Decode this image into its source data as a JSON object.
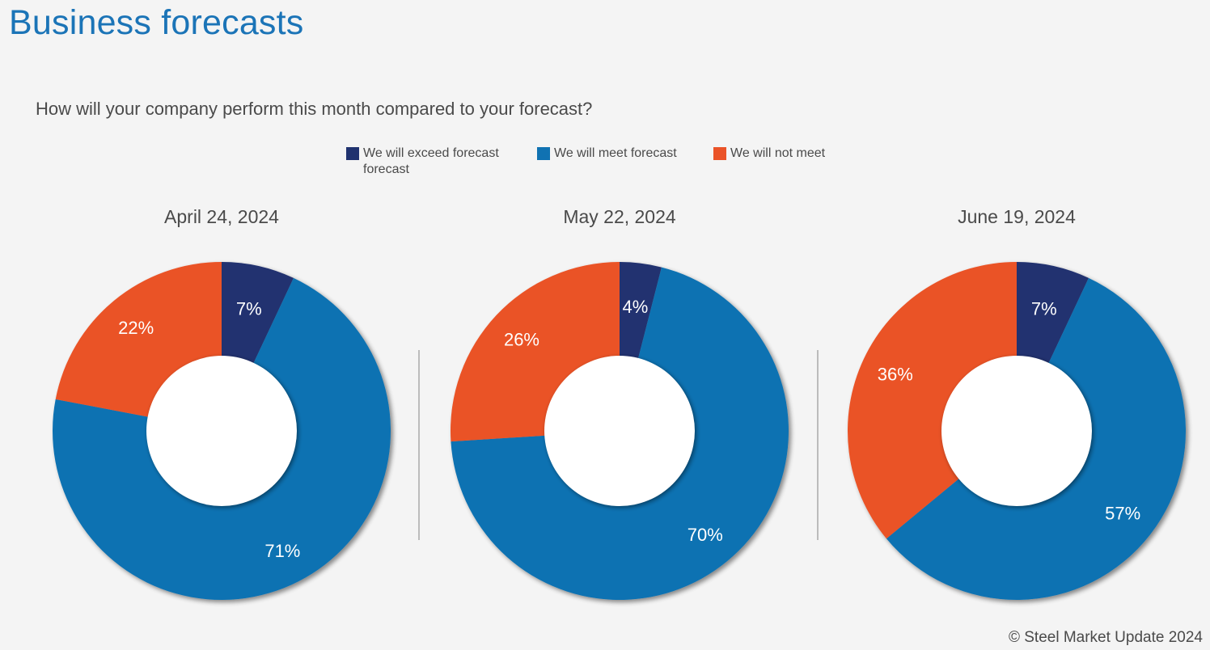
{
  "title": "Business forecasts",
  "subtitle": "How will your company perform this month compared to your forecast?",
  "legend": [
    {
      "label": "We will exceed forecast forecast",
      "color": "#20326f"
    },
    {
      "label": "We will meet forecast",
      "color": "#1072b2"
    },
    {
      "label": "We will not meet",
      "color": "#ea5328"
    }
  ],
  "chart_data": [
    {
      "type": "pie",
      "title": "April 24, 2024",
      "categories": [
        "We will exceed forecast forecast",
        "We will meet forecast",
        "We will not meet"
      ],
      "values": [
        7,
        71,
        22
      ],
      "labels": [
        "7%",
        "71%",
        "22%"
      ],
      "colors": [
        "#20326f",
        "#1072b2",
        "#ea5328"
      ],
      "donut": true
    },
    {
      "type": "pie",
      "title": "May 22, 2024",
      "categories": [
        "We will exceed forecast forecast",
        "We will meet forecast",
        "We will not meet"
      ],
      "values": [
        4,
        70,
        26
      ],
      "labels": [
        "4%",
        "70%",
        "26%"
      ],
      "colors": [
        "#20326f",
        "#1072b2",
        "#ea5328"
      ],
      "donut": true
    },
    {
      "type": "pie",
      "title": "June 19, 2024",
      "categories": [
        "We will exceed forecast forecast",
        "We will meet forecast",
        "We will not meet"
      ],
      "values": [
        7,
        57,
        36
      ],
      "labels": [
        "7%",
        "57%",
        "36%"
      ],
      "colors": [
        "#20326f",
        "#1072b2",
        "#ea5328"
      ],
      "donut": true
    }
  ],
  "copyright": "© Steel Market Update 2024"
}
